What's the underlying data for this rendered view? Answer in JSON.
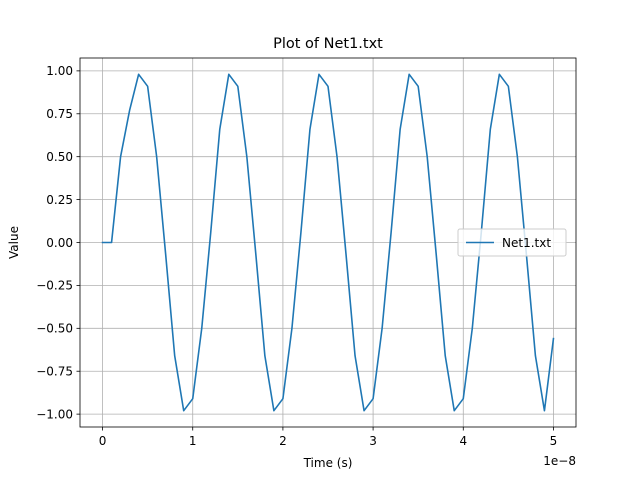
{
  "chart_data": {
    "type": "line",
    "title": "Plot of Net1.txt",
    "xlabel": "Time (s)",
    "ylabel": "Value",
    "x_offset_label": "1e−8",
    "xlim": [
      -0.25,
      5.25
    ],
    "ylim": [
      -1.075,
      1.075
    ],
    "x_scale_factor": 1e-08,
    "x_ticks": [
      0,
      1,
      2,
      3,
      4,
      5
    ],
    "x_tick_labels": [
      "0",
      "1",
      "2",
      "3",
      "4",
      "5"
    ],
    "y_ticks": [
      -1.0,
      -0.75,
      -0.5,
      -0.25,
      0.0,
      0.25,
      0.5,
      0.75,
      1.0
    ],
    "y_tick_labels": [
      "−1.00",
      "−0.75",
      "−0.50",
      "−0.25",
      "0.00",
      "0.25",
      "0.50",
      "0.75",
      "1.00"
    ],
    "grid": true,
    "legend_position": "center-right",
    "series": [
      {
        "name": "Net1.txt",
        "color": "#1f77b4",
        "x": [
          0,
          0.1,
          0.2,
          0.3,
          0.4,
          0.5,
          0.6,
          0.7,
          0.8,
          0.9,
          1.0,
          1.1,
          1.2,
          1.3,
          1.4,
          1.5,
          1.6,
          1.7,
          1.8,
          1.9,
          2.0,
          2.1,
          2.2,
          2.3,
          2.4,
          2.5,
          2.6,
          2.7,
          2.8,
          2.9,
          3.0,
          3.1,
          3.2,
          3.3,
          3.4,
          3.5,
          3.6,
          3.7,
          3.8,
          3.9,
          4.0,
          4.1,
          4.2,
          4.3,
          4.4,
          4.5,
          4.6,
          4.7,
          4.8,
          4.9,
          5.0
        ],
        "y": [
          0.0,
          0.0,
          0.5,
          0.77,
          0.98,
          0.91,
          0.5,
          -0.07,
          -0.66,
          -0.98,
          -0.91,
          -0.5,
          0.06,
          0.66,
          0.98,
          0.91,
          0.5,
          -0.07,
          -0.66,
          -0.98,
          -0.91,
          -0.5,
          0.06,
          0.66,
          0.98,
          0.91,
          0.5,
          -0.07,
          -0.66,
          -0.98,
          -0.91,
          -0.5,
          0.06,
          0.66,
          0.98,
          0.91,
          0.5,
          -0.07,
          -0.66,
          -0.98,
          -0.91,
          -0.5,
          0.06,
          0.66,
          0.98,
          0.91,
          0.5,
          -0.07,
          -0.66,
          -0.98,
          -0.56
        ]
      }
    ]
  }
}
